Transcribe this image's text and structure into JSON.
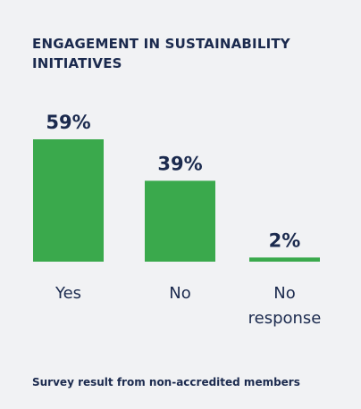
{
  "chart_data": {
    "type": "bar",
    "title": "ENGAGEMENT IN SUSTAINABILITY INITIATIVES",
    "categories": [
      "Yes",
      "No",
      "No response"
    ],
    "values": [
      59,
      39,
      2
    ],
    "value_labels": [
      "59%",
      "39%",
      "2%"
    ],
    "ylim": [
      0,
      59
    ],
    "grid": false,
    "bar_color": "#3aa94c",
    "footnote": "Survey result from non-accredited members"
  },
  "colors": {
    "background": "#f1f2f4",
    "text": "#1b2a4e",
    "bar": "#3aa94c"
  }
}
